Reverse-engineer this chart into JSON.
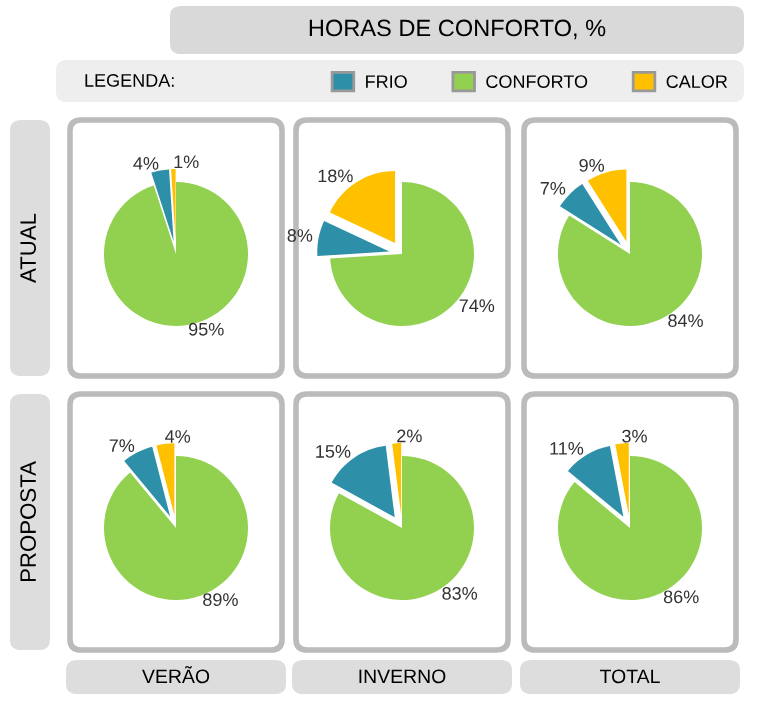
{
  "chart_data": [
    {
      "type": "other",
      "title": "HORAS DE CONFORTO, %",
      "legend_title": "LEGENDA:",
      "categories": [
        "FRIO",
        "CONFORTO",
        "CALOR"
      ],
      "colors": [
        "#2e8fa8",
        "#92d050",
        "#ffc000"
      ]
    },
    {
      "type": "pie",
      "ylabel": "ATUAL",
      "categories": [
        null,
        null,
        null
      ],
      "values": [
        4,
        95,
        1
      ],
      "value_labels": [
        "4%",
        "95%",
        "1%"
      ],
      "colors": [
        "#2e8fa8",
        "#92d050",
        "#ffc000"
      ]
    },
    {
      "type": "pie",
      "categories": [
        null,
        null,
        null
      ],
      "values": [
        8,
        74,
        18
      ],
      "value_labels": [
        "8%",
        "74%",
        "18%"
      ],
      "colors": [
        "#2e8fa8",
        "#92d050",
        "#ffc000"
      ]
    },
    {
      "type": "pie",
      "categories": [
        null,
        null,
        null
      ],
      "values": [
        7,
        84,
        9
      ],
      "value_labels": [
        "7%",
        "84%",
        "9%"
      ],
      "colors": [
        "#2e8fa8",
        "#92d050",
        "#ffc000"
      ]
    },
    {
      "type": "pie",
      "ylabel": "PROPOSTA",
      "xlabel": "VERÃO",
      "categories": [
        null,
        null,
        null
      ],
      "values": [
        7,
        89,
        4
      ],
      "value_labels": [
        "7%",
        "89%",
        "4%"
      ],
      "colors": [
        "#2e8fa8",
        "#92d050",
        "#ffc000"
      ]
    },
    {
      "type": "pie",
      "xlabel": "INVERNO",
      "categories": [
        null,
        null,
        null
      ],
      "values": [
        15,
        83,
        2
      ],
      "value_labels": [
        "15%",
        "83%",
        "2%"
      ],
      "colors": [
        "#2e8fa8",
        "#92d050",
        "#ffc000"
      ]
    },
    {
      "type": "pie",
      "xlabel": "TOTAL",
      "categories": [
        null,
        null,
        null
      ],
      "values": [
        11,
        86,
        3
      ],
      "value_labels": [
        "11%",
        "86%",
        "3%"
      ],
      "colors": [
        "#2e8fa8",
        "#92d050",
        "#ffc000"
      ]
    }
  ]
}
